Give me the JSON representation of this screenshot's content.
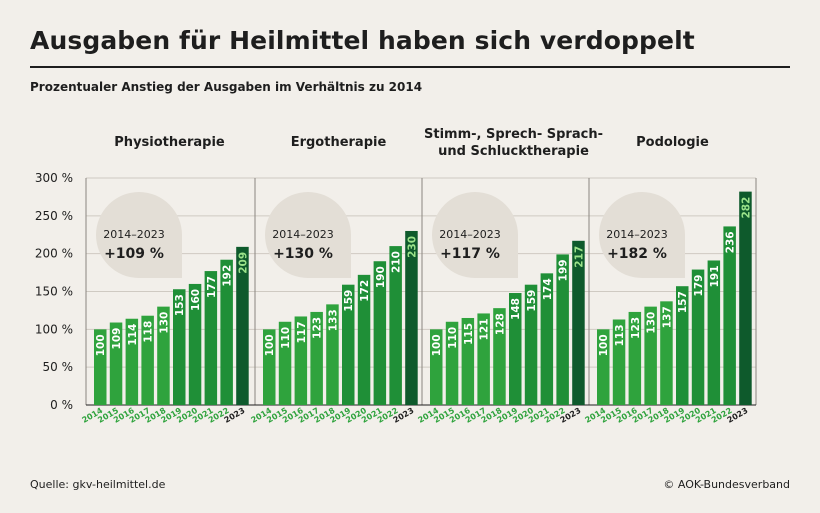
{
  "header": {
    "title": "Ausgaben für Heilmittel haben sich verdoppelt",
    "subtitle": "Prozentualer Anstieg der Ausgaben im Verhältnis zu 2014"
  },
  "footer": {
    "source": "Quelle: gkv-heilmittel.de",
    "credit": "© AOK-Bundesverband"
  },
  "colors": {
    "bar_light": "#2fa33d",
    "bar_mid": "#1f8f37",
    "bar_dark": "#0e5a2c",
    "bubble": "#e3ded6",
    "axis_year": "#2fa33d"
  },
  "chart_data": [
    {
      "type": "bar",
      "title": "Physiotherapie",
      "categories": [
        "2014",
        "2015",
        "2016",
        "2017",
        "2018",
        "2019",
        "2020",
        "2021",
        "2022",
        "2023"
      ],
      "values": [
        100,
        109,
        114,
        118,
        130,
        153,
        160,
        177,
        192,
        209
      ],
      "period": "2014–2023",
      "growth": "+109 %",
      "ylim": [
        0,
        300
      ]
    },
    {
      "type": "bar",
      "title": "Ergotherapie",
      "categories": [
        "2014",
        "2015",
        "2016",
        "2017",
        "2018",
        "2019",
        "2020",
        "2021",
        "2022",
        "2023"
      ],
      "values": [
        100,
        110,
        117,
        123,
        133,
        159,
        172,
        190,
        210,
        230
      ],
      "period": "2014–2023",
      "growth": "+130 %",
      "ylim": [
        0,
        300
      ]
    },
    {
      "type": "bar",
      "title": "Stimm-, Sprech- Sprach- und Schlucktherapie",
      "title_lines": [
        "Stimm-, Sprech- Sprach-",
        "und Schlucktherapie"
      ],
      "categories": [
        "2014",
        "2015",
        "2016",
        "2017",
        "2018",
        "2019",
        "2020",
        "2021",
        "2022",
        "2023"
      ],
      "values": [
        100,
        110,
        115,
        121,
        128,
        148,
        159,
        174,
        199,
        217
      ],
      "period": "2014–2023",
      "growth": "+117 %",
      "ylim": [
        0,
        300
      ]
    },
    {
      "type": "bar",
      "title": "Podologie",
      "categories": [
        "2014",
        "2015",
        "2016",
        "2017",
        "2018",
        "2019",
        "2020",
        "2021",
        "2022",
        "2023"
      ],
      "values": [
        100,
        113,
        123,
        130,
        137,
        157,
        179,
        191,
        236,
        282
      ],
      "period": "2014–2023",
      "growth": "+182 %",
      "ylim": [
        0,
        300
      ]
    }
  ],
  "y_axis": {
    "ticks": [
      0,
      50,
      100,
      150,
      200,
      250,
      300
    ],
    "tick_labels": [
      "0 %",
      "50 %",
      "100 %",
      "150 %",
      "200 %",
      "250 %",
      "300 %"
    ]
  }
}
